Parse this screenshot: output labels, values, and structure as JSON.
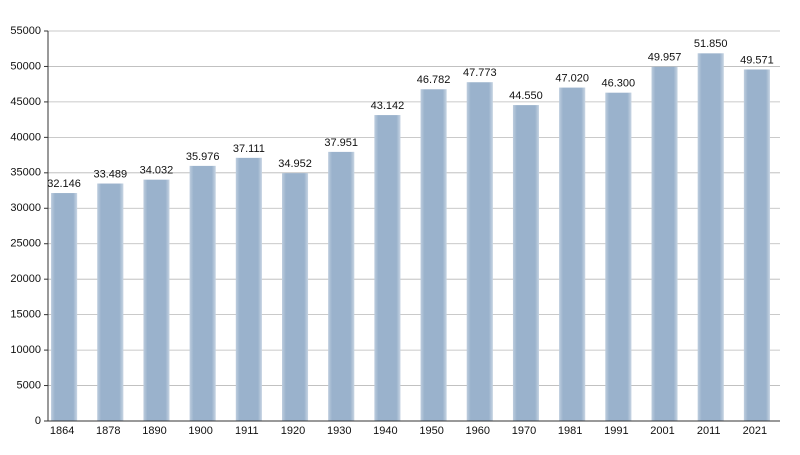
{
  "chart_data": {
    "type": "bar",
    "categories": [
      "1864",
      "1878",
      "1890",
      "1900",
      "1911",
      "1920",
      "1930",
      "1940",
      "1950",
      "1960",
      "1970",
      "1981",
      "1991",
      "2001",
      "2011",
      "2021"
    ],
    "values": [
      32146,
      33489,
      34032,
      35976,
      37111,
      34952,
      37951,
      43142,
      46782,
      47773,
      44550,
      47020,
      46300,
      49957,
      51850,
      49571
    ],
    "value_labels": [
      "32.146",
      "33.489",
      "34.032",
      "35.976",
      "37.111",
      "34.952",
      "37.951",
      "43.142",
      "46.782",
      "47.773",
      "44.550",
      "47.020",
      "46.300",
      "49.957",
      "51.850",
      "49.571"
    ],
    "color": "#9ab2cc",
    "ylim": [
      0,
      55000
    ],
    "yticks": [
      0,
      5000,
      10000,
      15000,
      20000,
      25000,
      30000,
      35000,
      40000,
      45000,
      50000,
      55000
    ],
    "grid": true
  }
}
